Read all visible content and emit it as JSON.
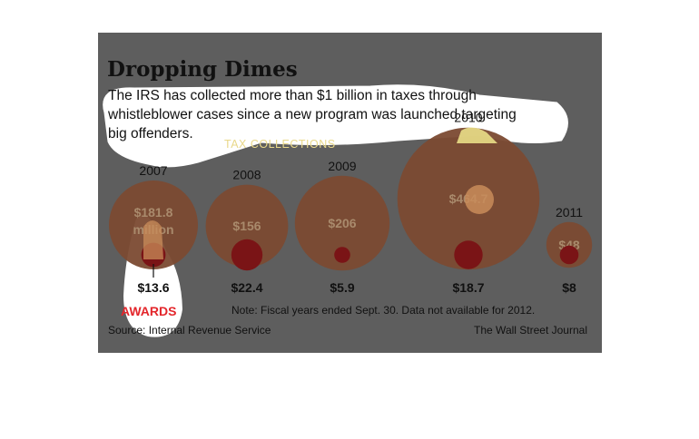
{
  "title": "Dropping Dimes",
  "subtitle_lines": [
    "The IRS has collected more than $1 billion in taxes through",
    "whistleblower cases since a new program was launched targeting",
    "big offenders."
  ],
  "section_label": "TAX COLLECTIONS",
  "awards_label": "AWARDS",
  "note": "Note: Fiscal years ended Sept. 30. Data not available for 2012.",
  "source": "Source: Internal Revenue Service",
  "credit": "The Wall Street Journal",
  "colors": {
    "background": "#5e5e5e",
    "collection_bubble": "#7b4a31",
    "award_bubble": "#7a1416",
    "highlight_bubble": "#c98c5a",
    "awards_text": "#e3262b",
    "section_label": "#e9d88a"
  },
  "chart_data": {
    "type": "bubble",
    "units": "$ millions",
    "categories": [
      "2007",
      "2008",
      "2009",
      "2010",
      "2011"
    ],
    "series": [
      {
        "name": "TAX COLLECTIONS",
        "values": [
          181.8,
          156,
          206,
          464.7,
          48
        ],
        "labels": [
          "$181.8 million",
          "$156",
          "$206",
          "$464.7",
          "$48"
        ]
      },
      {
        "name": "AWARDS",
        "values": [
          13.6,
          22.4,
          5.9,
          18.7,
          8
        ],
        "labels": [
          "$13.6",
          "$22.4",
          "$5.9",
          "$18.7",
          "$8"
        ]
      }
    ]
  }
}
